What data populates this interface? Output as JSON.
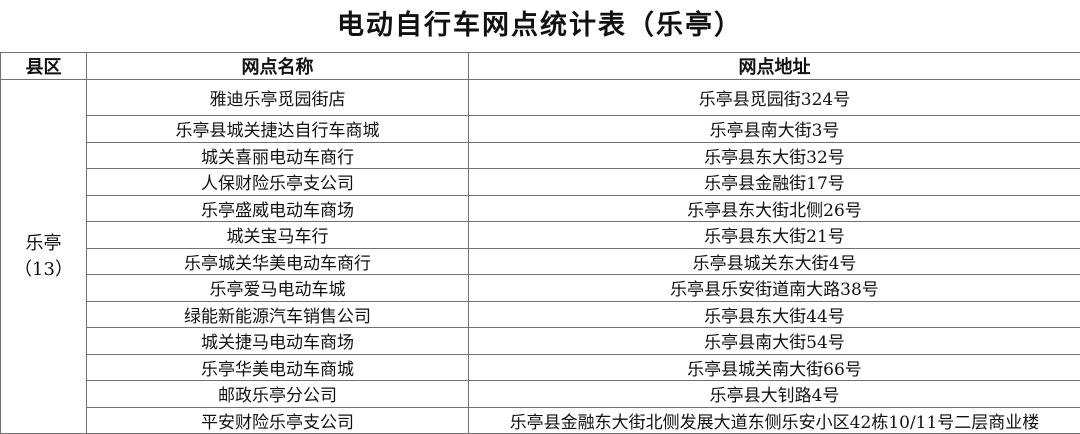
{
  "title": "电动自行车网点统计表（乐亭）",
  "headers": {
    "county": "县区",
    "name": "网点名称",
    "address": "网点地址"
  },
  "county": {
    "name": "乐亭",
    "count": "（13）"
  },
  "rows": [
    {
      "name": "雅迪乐亭觅园街店",
      "address": "乐亭县觅园街324号"
    },
    {
      "name": "乐亭县城关捷达自行车商城",
      "address": "乐亭县南大街3号"
    },
    {
      "name": "城关喜丽电动车商行",
      "address": "乐亭县东大街32号"
    },
    {
      "name": "人保财险乐亭支公司",
      "address": "乐亭县金融街17号"
    },
    {
      "name": "乐亭盛威电动车商场",
      "address": "乐亭县东大街北侧26号"
    },
    {
      "name": "城关宝马车行",
      "address": "乐亭县东大街21号"
    },
    {
      "name": "乐亭城关华美电动车商行",
      "address": "乐亭县城关东大街4号"
    },
    {
      "name": "乐亭爱马电动车城",
      "address": "乐亭县乐安街道南大路38号"
    },
    {
      "name": "绿能新能源汽车销售公司",
      "address": "乐亭县东大街44号"
    },
    {
      "name": "城关捷马电动车商场",
      "address": "乐亭县南大街54号"
    },
    {
      "name": "乐亭华美电动车商城",
      "address": "乐亭县城关南大街66号"
    },
    {
      "name": "邮政乐亭分公司",
      "address": "乐亭县大钊路4号"
    },
    {
      "name": "平安财险乐亭支公司",
      "address": "乐亭县金融东大街北侧发展大道东侧乐安小区42栋10/11号二层商业楼"
    }
  ]
}
